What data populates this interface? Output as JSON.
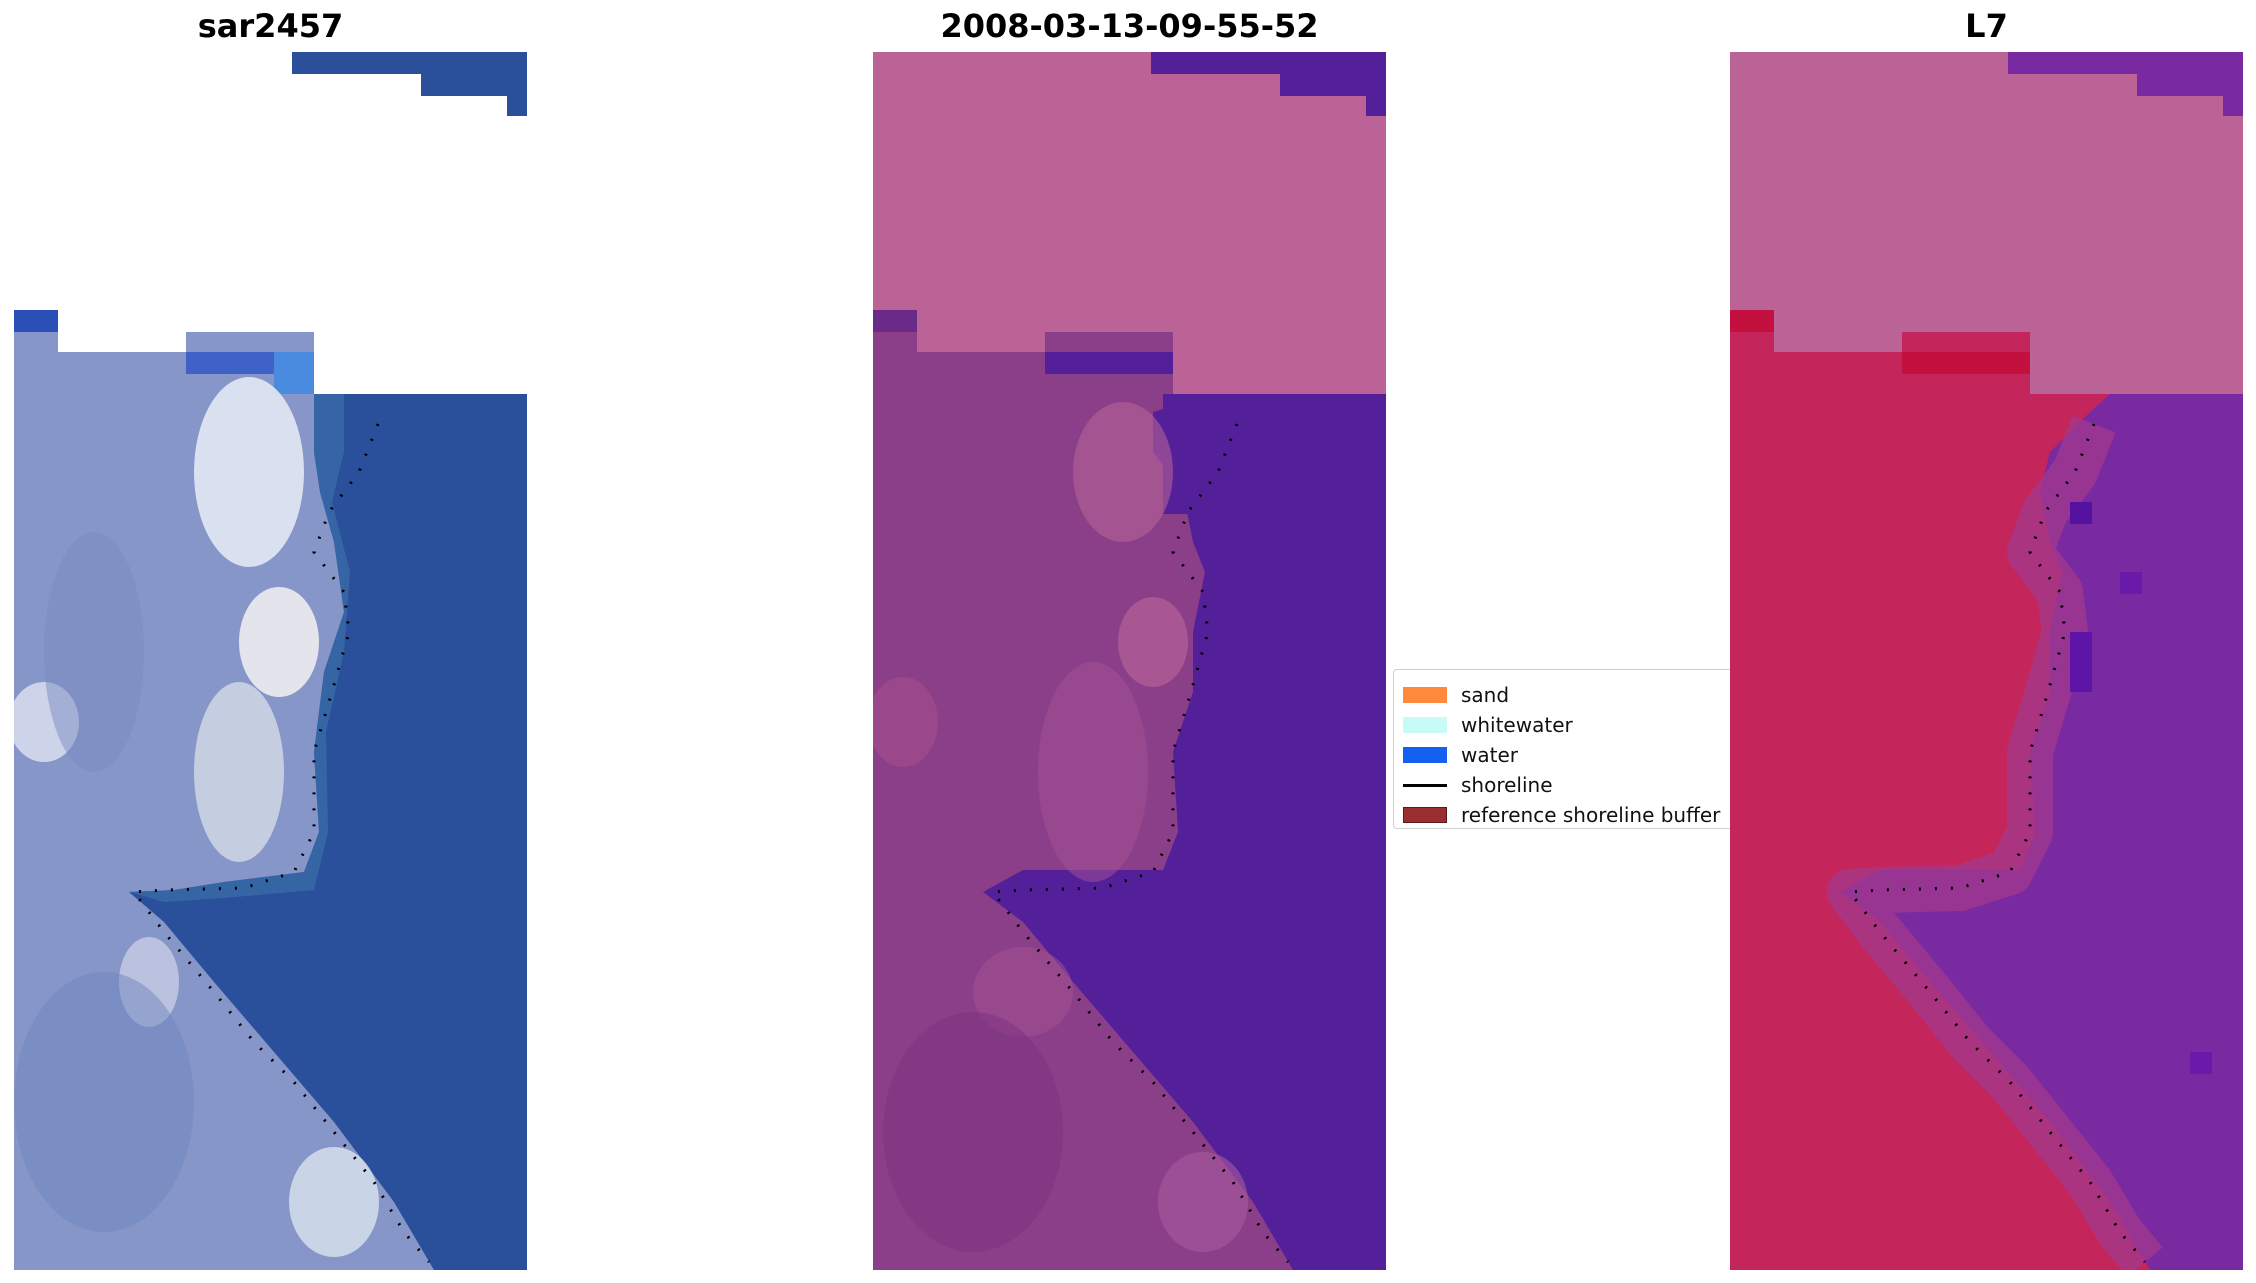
{
  "titles": [
    "sar2457",
    "2008-03-13-09-55-52",
    "L7"
  ],
  "legend": {
    "items": [
      {
        "label": "sand",
        "color": "#ff8a3d",
        "kind": "patch"
      },
      {
        "label": "whitewater",
        "color": "#c8fbf6",
        "kind": "patch"
      },
      {
        "label": "water",
        "color": "#1460f0",
        "kind": "patch"
      },
      {
        "label": "shoreline",
        "color": "#000000",
        "kind": "line"
      },
      {
        "label": "reference shoreline buffer",
        "color": "#9b2f2f",
        "kind": "patch"
      }
    ]
  },
  "colors": {
    "rgb": {
      "water": "#2a4f9b",
      "land": "#8796c8",
      "bright": "#e8eef8",
      "shallow": "#3a6aa8",
      "nodata": "#ffffff"
    },
    "false_color": {
      "water": "#54209a",
      "land": "#8b3f88",
      "nodata": "#bb6396",
      "edge": "#a85a9e"
    },
    "l7": {
      "water": "#7a2aa0",
      "land": "#c4255a",
      "nodata": "#bb6396",
      "edge": "#a33a8f"
    }
  }
}
